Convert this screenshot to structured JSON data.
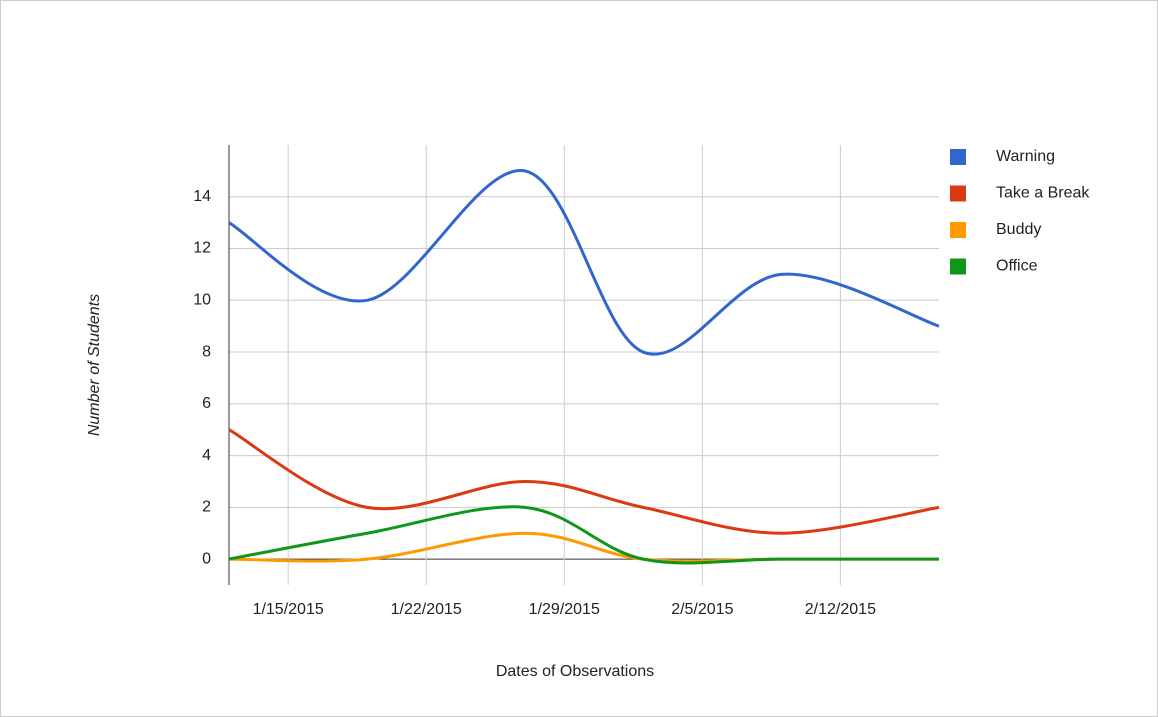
{
  "chart_data": {
    "type": "line",
    "y_label": "Number of Students",
    "x_label": "Dates of Observations",
    "x": [
      "1/12/2015",
      "1/19/2015",
      "1/27/2015",
      "2/2/2015",
      "2/9/2015",
      "2/17/2015"
    ],
    "series": [
      {
        "name": "Warning",
        "color": "#3366cc",
        "values": [
          13,
          10,
          15,
          8,
          11,
          9
        ]
      },
      {
        "name": "Take a Break",
        "color": "#dc3912",
        "values": [
          5,
          2,
          3,
          2,
          1,
          2
        ]
      },
      {
        "name": "Buddy",
        "color": "#ff9900",
        "values": [
          0,
          0,
          1,
          0,
          0,
          0
        ]
      },
      {
        "name": "Office",
        "color": "#109618",
        "values": [
          0,
          1,
          2,
          0,
          0,
          0
        ]
      }
    ],
    "xlim": [
      "1/12/2015",
      "2/17/2015"
    ],
    "xticks": [
      "1/15/2015",
      "1/22/2015",
      "1/29/2015",
      "2/5/2015",
      "2/12/2015"
    ],
    "ylim": [
      -1,
      16
    ],
    "yticks": [
      0,
      2,
      4,
      6,
      8,
      10,
      12,
      14
    ],
    "grid": true,
    "legend": "right"
  }
}
